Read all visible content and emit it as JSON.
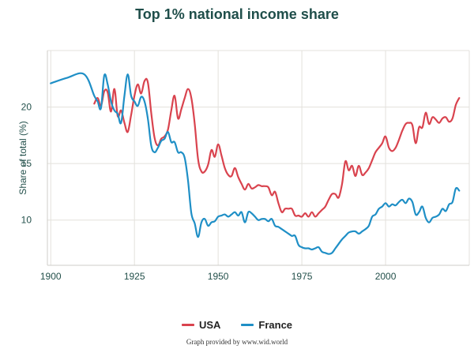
{
  "chart_data": {
    "type": "line",
    "title": "Top 1% national income share",
    "ylabel": "Share of total (%)",
    "xlabel": "",
    "xlim": [
      1899,
      2025
    ],
    "ylim": [
      6.0,
      25.0
    ],
    "x_ticks": [
      1900,
      1925,
      1950,
      1975,
      2000
    ],
    "y_ticks": [
      10,
      15,
      20
    ],
    "grid": true,
    "legend_position": "bottom-center",
    "series": [
      {
        "name": "USA",
        "color": "#d9434e",
        "points": [
          [
            1913,
            20.3
          ],
          [
            1914,
            20.8
          ],
          [
            1915,
            20.1
          ],
          [
            1916,
            21.4
          ],
          [
            1917,
            21.3
          ],
          [
            1918,
            19.6
          ],
          [
            1919,
            21.6
          ],
          [
            1920,
            19.2
          ],
          [
            1921,
            19.7
          ],
          [
            1922,
            18.6
          ],
          [
            1923,
            17.8
          ],
          [
            1924,
            19.3
          ],
          [
            1925,
            21.0
          ],
          [
            1926,
            22.0
          ],
          [
            1927,
            21.2
          ],
          [
            1928,
            22.3
          ],
          [
            1929,
            22.2
          ],
          [
            1930,
            19.5
          ],
          [
            1931,
            17.3
          ],
          [
            1932,
            16.6
          ],
          [
            1933,
            17.2
          ],
          [
            1934,
            17.4
          ],
          [
            1935,
            18.0
          ],
          [
            1936,
            19.7
          ],
          [
            1937,
            21.0
          ],
          [
            1938,
            19.0
          ],
          [
            1939,
            19.8
          ],
          [
            1940,
            20.8
          ],
          [
            1941,
            21.6
          ],
          [
            1942,
            20.8
          ],
          [
            1943,
            18.5
          ],
          [
            1944,
            15.4
          ],
          [
            1945,
            14.3
          ],
          [
            1946,
            14.3
          ],
          [
            1947,
            14.9
          ],
          [
            1948,
            16.2
          ],
          [
            1949,
            15.6
          ],
          [
            1950,
            16.7
          ],
          [
            1951,
            15.7
          ],
          [
            1952,
            14.6
          ],
          [
            1953,
            14.0
          ],
          [
            1954,
            13.9
          ],
          [
            1955,
            14.6
          ],
          [
            1956,
            13.8
          ],
          [
            1957,
            13.2
          ],
          [
            1958,
            12.7
          ],
          [
            1959,
            13.2
          ],
          [
            1960,
            12.8
          ],
          [
            1961,
            12.9
          ],
          [
            1962,
            13.1
          ],
          [
            1963,
            13.0
          ],
          [
            1964,
            13.0
          ],
          [
            1965,
            12.9
          ],
          [
            1966,
            12.2
          ],
          [
            1967,
            12.5
          ],
          [
            1968,
            11.5
          ],
          [
            1969,
            10.7
          ],
          [
            1970,
            11.0
          ],
          [
            1971,
            11.0
          ],
          [
            1972,
            11.0
          ],
          [
            1973,
            10.4
          ],
          [
            1974,
            10.4
          ],
          [
            1975,
            10.3
          ],
          [
            1976,
            10.6
          ],
          [
            1977,
            10.3
          ],
          [
            1978,
            10.7
          ],
          [
            1979,
            10.3
          ],
          [
            1980,
            10.6
          ],
          [
            1981,
            10.9
          ],
          [
            1982,
            11.2
          ],
          [
            1983,
            11.8
          ],
          [
            1984,
            12.3
          ],
          [
            1985,
            12.3
          ],
          [
            1986,
            12.0
          ],
          [
            1987,
            13.2
          ],
          [
            1988,
            15.2
          ],
          [
            1989,
            14.4
          ],
          [
            1990,
            14.8
          ],
          [
            1991,
            13.9
          ],
          [
            1992,
            14.8
          ],
          [
            1993,
            14.0
          ],
          [
            1994,
            14.2
          ],
          [
            1995,
            14.6
          ],
          [
            1996,
            15.3
          ],
          [
            1997,
            16.0
          ],
          [
            1998,
            16.4
          ],
          [
            1999,
            16.8
          ],
          [
            2000,
            17.4
          ],
          [
            2001,
            16.4
          ],
          [
            2002,
            16.1
          ],
          [
            2003,
            16.4
          ],
          [
            2004,
            17.1
          ],
          [
            2005,
            17.9
          ],
          [
            2006,
            18.5
          ],
          [
            2007,
            18.6
          ],
          [
            2008,
            18.4
          ],
          [
            2009,
            16.8
          ],
          [
            2010,
            18.2
          ],
          [
            2011,
            18.2
          ],
          [
            2012,
            19.5
          ],
          [
            2013,
            18.5
          ],
          [
            2014,
            19.1
          ],
          [
            2015,
            18.9
          ],
          [
            2016,
            18.6
          ],
          [
            2017,
            19.0
          ],
          [
            2018,
            19.1
          ],
          [
            2019,
            18.7
          ],
          [
            2020,
            19.0
          ],
          [
            2021,
            20.2
          ],
          [
            2022,
            20.8
          ]
        ]
      },
      {
        "name": "France",
        "color": "#1f8fc6",
        "points": [
          [
            1900,
            22.1
          ],
          [
            1905,
            22.6
          ],
          [
            1910,
            22.9
          ],
          [
            1913,
            21.0
          ],
          [
            1914,
            20.5
          ],
          [
            1915,
            19.9
          ],
          [
            1916,
            22.8
          ],
          [
            1917,
            22.0
          ],
          [
            1918,
            20.5
          ],
          [
            1919,
            19.7
          ],
          [
            1920,
            19.4
          ],
          [
            1921,
            18.6
          ],
          [
            1922,
            21.0
          ],
          [
            1923,
            22.9
          ],
          [
            1924,
            21.0
          ],
          [
            1925,
            20.5
          ],
          [
            1926,
            20.1
          ],
          [
            1927,
            20.9
          ],
          [
            1928,
            20.5
          ],
          [
            1929,
            19.0
          ],
          [
            1930,
            16.6
          ],
          [
            1931,
            16.0
          ],
          [
            1932,
            16.4
          ],
          [
            1933,
            17.0
          ],
          [
            1934,
            17.2
          ],
          [
            1935,
            17.8
          ],
          [
            1936,
            16.9
          ],
          [
            1937,
            16.9
          ],
          [
            1938,
            16.0
          ],
          [
            1939,
            16.0
          ],
          [
            1940,
            15.5
          ],
          [
            1941,
            13.5
          ],
          [
            1942,
            10.6
          ],
          [
            1943,
            9.7
          ],
          [
            1944,
            8.5
          ],
          [
            1945,
            9.8
          ],
          [
            1946,
            10.1
          ],
          [
            1947,
            9.5
          ],
          [
            1948,
            9.8
          ],
          [
            1949,
            9.9
          ],
          [
            1950,
            10.3
          ],
          [
            1951,
            10.4
          ],
          [
            1952,
            10.5
          ],
          [
            1953,
            10.3
          ],
          [
            1954,
            10.5
          ],
          [
            1955,
            10.7
          ],
          [
            1956,
            10.4
          ],
          [
            1957,
            10.7
          ],
          [
            1958,
            9.8
          ],
          [
            1959,
            10.7
          ],
          [
            1960,
            10.6
          ],
          [
            1961,
            10.3
          ],
          [
            1962,
            10.0
          ],
          [
            1963,
            10.1
          ],
          [
            1964,
            10.1
          ],
          [
            1965,
            9.9
          ],
          [
            1966,
            10.1
          ],
          [
            1967,
            9.5
          ],
          [
            1968,
            9.4
          ],
          [
            1969,
            9.2
          ],
          [
            1970,
            9.0
          ],
          [
            1971,
            8.8
          ],
          [
            1972,
            8.6
          ],
          [
            1973,
            8.6
          ],
          [
            1974,
            7.8
          ],
          [
            1975,
            7.6
          ],
          [
            1976,
            7.5
          ],
          [
            1977,
            7.5
          ],
          [
            1978,
            7.4
          ],
          [
            1979,
            7.5
          ],
          [
            1980,
            7.6
          ],
          [
            1981,
            7.2
          ],
          [
            1982,
            7.1
          ],
          [
            1983,
            7.0
          ],
          [
            1984,
            7.1
          ],
          [
            1985,
            7.5
          ],
          [
            1986,
            7.9
          ],
          [
            1987,
            8.3
          ],
          [
            1988,
            8.6
          ],
          [
            1989,
            8.9
          ],
          [
            1990,
            9.0
          ],
          [
            1991,
            9.0
          ],
          [
            1992,
            8.8
          ],
          [
            1993,
            9.0
          ],
          [
            1994,
            9.2
          ],
          [
            1995,
            9.5
          ],
          [
            1996,
            10.3
          ],
          [
            1997,
            10.5
          ],
          [
            1998,
            11.0
          ],
          [
            1999,
            11.2
          ],
          [
            2000,
            11.5
          ],
          [
            2001,
            11.2
          ],
          [
            2002,
            11.4
          ],
          [
            2003,
            11.3
          ],
          [
            2004,
            11.6
          ],
          [
            2005,
            11.8
          ],
          [
            2006,
            11.5
          ],
          [
            2007,
            11.9
          ],
          [
            2008,
            11.6
          ],
          [
            2009,
            10.5
          ],
          [
            2010,
            10.7
          ],
          [
            2011,
            11.2
          ],
          [
            2012,
            10.2
          ],
          [
            2013,
            9.8
          ],
          [
            2014,
            10.2
          ],
          [
            2015,
            10.3
          ],
          [
            2016,
            10.5
          ],
          [
            2017,
            11.0
          ],
          [
            2018,
            10.8
          ],
          [
            2019,
            11.4
          ],
          [
            2020,
            11.6
          ],
          [
            2021,
            12.8
          ],
          [
            2022,
            12.6
          ]
        ]
      }
    ]
  },
  "credit": "Graph provided by www.wid.world"
}
